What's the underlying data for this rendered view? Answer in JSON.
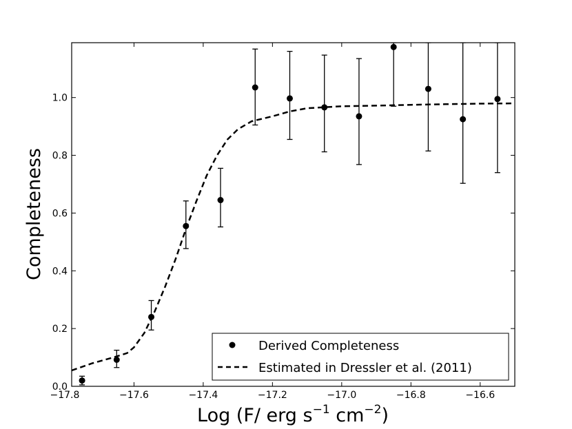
{
  "chart_data": {
    "type": "scatter",
    "xlabel": "Log (F/ erg s",
    "xlabel_sup1": "−1",
    "xlabel_mid": " cm",
    "xlabel_sup2": "−2",
    "xlabel_end": ")",
    "ylabel": "Completeness",
    "xlim": [
      -17.78,
      -16.5
    ],
    "ylim": [
      0.0,
      1.19
    ],
    "x_ticks": [
      -17.8,
      -17.6,
      -17.4,
      -17.2,
      -17.0,
      -16.8,
      -16.6
    ],
    "x_tick_labels": [
      "−17.8",
      "−17.6",
      "−17.4",
      "−17.2",
      "−17.0",
      "−16.8",
      "−16.6"
    ],
    "y_ticks": [
      0.0,
      0.2,
      0.4,
      0.6,
      0.8,
      1.0
    ],
    "y_tick_labels": [
      "0.0",
      "0.2",
      "0.4",
      "0.6",
      "0.8",
      "1.0"
    ],
    "grid": false,
    "legend_position": "bottom-right",
    "series": [
      {
        "name": "Derived Completeness",
        "style": "points-with-errorbars",
        "color": "#000000",
        "points": [
          {
            "x": -17.75,
            "y": 0.02,
            "lo": 0.005,
            "hi": 0.035
          },
          {
            "x": -17.65,
            "y": 0.092,
            "lo": 0.065,
            "hi": 0.125
          },
          {
            "x": -17.55,
            "y": 0.24,
            "lo": 0.195,
            "hi": 0.297
          },
          {
            "x": -17.45,
            "y": 0.555,
            "lo": 0.477,
            "hi": 0.642
          },
          {
            "x": -17.35,
            "y": 0.645,
            "lo": 0.552,
            "hi": 0.755
          },
          {
            "x": -17.25,
            "y": 1.035,
            "lo": 0.905,
            "hi": 1.168
          },
          {
            "x": -17.15,
            "y": 0.997,
            "lo": 0.855,
            "hi": 1.16
          },
          {
            "x": -17.05,
            "y": 0.966,
            "lo": 0.812,
            "hi": 1.147
          },
          {
            "x": -16.95,
            "y": 0.935,
            "lo": 0.768,
            "hi": 1.135
          },
          {
            "x": -16.85,
            "y": 1.175,
            "lo": 0.97,
            "hi": 1.19
          },
          {
            "x": -16.75,
            "y": 1.03,
            "lo": 0.815,
            "hi": 1.19
          },
          {
            "x": -16.65,
            "y": 0.925,
            "lo": 0.703,
            "hi": 1.19
          },
          {
            "x": -16.55,
            "y": 0.995,
            "lo": 0.74,
            "hi": 1.19
          }
        ]
      },
      {
        "name": "Estimated in Dressler et al. (2011)",
        "style": "dashed-line",
        "color": "#000000",
        "x": [
          -17.78,
          -17.72,
          -17.66,
          -17.62,
          -17.6,
          -17.57,
          -17.54,
          -17.51,
          -17.48,
          -17.45,
          -17.42,
          -17.39,
          -17.36,
          -17.33,
          -17.3,
          -17.26,
          -17.2,
          -17.15,
          -17.1,
          -17.0,
          -16.9,
          -16.8,
          -16.7,
          -16.6,
          -16.5
        ],
        "y": [
          0.055,
          0.08,
          0.1,
          0.115,
          0.135,
          0.185,
          0.26,
          0.345,
          0.44,
          0.545,
          0.64,
          0.73,
          0.8,
          0.855,
          0.89,
          0.918,
          0.935,
          0.952,
          0.963,
          0.97,
          0.972,
          0.975,
          0.977,
          0.979,
          0.98
        ]
      }
    ]
  }
}
